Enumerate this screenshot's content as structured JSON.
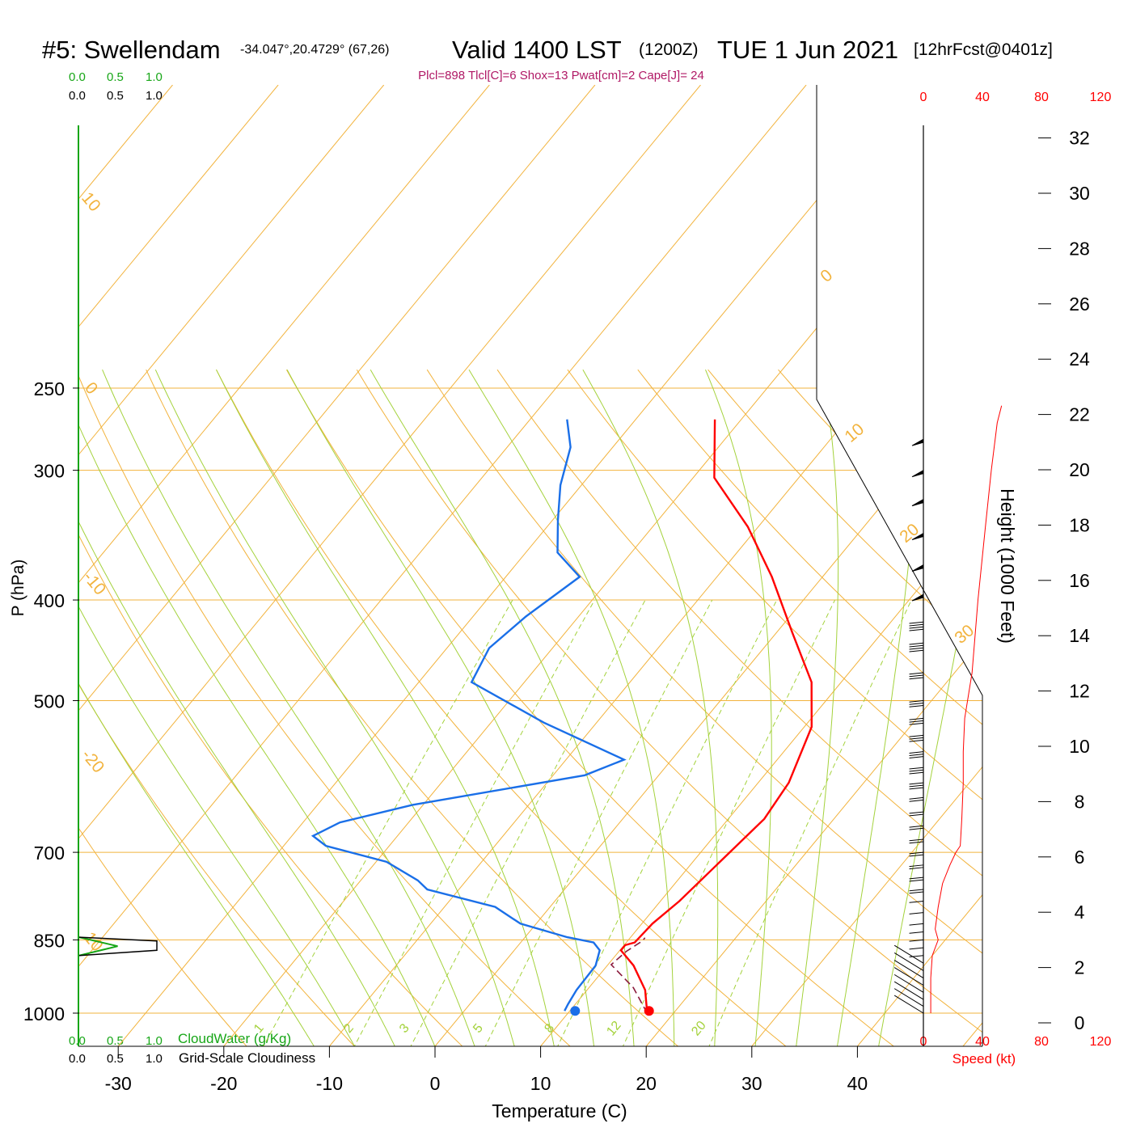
{
  "header": {
    "station": "#5: Swellendam",
    "coords": "-34.047°,20.4729° (67,26)",
    "valid": "Valid 1400 LST",
    "zulu": "(1200Z)",
    "date": "TUE 1 Jun 2021",
    "forecast": "[12hrFcst@0401z]",
    "indices": "Plcl=898 Tlcl[C]=6 Shox=13 Pwat[cm]=2 Cape[J]= 24"
  },
  "top_scales": {
    "cloudwater": [
      "0.0",
      "0.5",
      "1.0"
    ],
    "cloudiness": [
      "0.0",
      "0.5",
      "1.0"
    ]
  },
  "bottom_scales": {
    "cloudwater": [
      "0.0",
      "0.5",
      "1.0"
    ],
    "cloudwater_label": "CloudWater (g/Kg)",
    "cloudiness": [
      "0.0",
      "0.5",
      "1.0"
    ],
    "cloudiness_label": "Grid-Scale Cloudiness"
  },
  "wind_speed_axis": {
    "ticks": [
      "0",
      "40",
      "80",
      "120"
    ],
    "label": "Speed (kt)"
  },
  "chart_data": {
    "type": "line",
    "subtype": "skew-T log-P sounding",
    "xlabel": "Temperature (C)",
    "ylabel": "P (hPa)",
    "y2label": "Height (1000 Feet)",
    "x_ticks": [
      -30,
      -20,
      -10,
      0,
      10,
      20,
      30,
      40
    ],
    "p_ticks": [
      250,
      300,
      400,
      500,
      700,
      850,
      1000
    ],
    "height_ticks": [
      0,
      2,
      4,
      6,
      8,
      10,
      12,
      14,
      16,
      18,
      20,
      22,
      24,
      26,
      28,
      30,
      32
    ],
    "isotherm_labels": [
      "-20",
      "-10",
      "0",
      "10",
      "0",
      "10",
      "20",
      "30",
      "10"
    ],
    "mixing_ratio_labels": [
      "1",
      "2",
      "3",
      "5",
      "8",
      "12",
      "20"
    ],
    "series": [
      {
        "name": "temperature",
        "color": "#ff0000",
        "points": [
          [
            17.5,
            1000
          ],
          [
            15.5,
            950
          ],
          [
            12.5,
            900
          ],
          [
            10.1,
            870
          ],
          [
            10.1,
            860
          ],
          [
            10.8,
            855
          ],
          [
            11.0,
            820
          ],
          [
            11.8,
            780
          ],
          [
            12.5,
            720
          ],
          [
            13.4,
            650
          ],
          [
            12.9,
            600
          ],
          [
            10.7,
            530
          ],
          [
            7.2,
            480
          ],
          [
            1.5,
            430
          ],
          [
            -4.8,
            380
          ],
          [
            -11.0,
            340
          ],
          [
            -18.0,
            305
          ],
          [
            -22.5,
            268
          ]
        ]
      },
      {
        "name": "dewpoint",
        "color": "#1a6fe8",
        "points": [
          [
            9.5,
            995
          ],
          [
            9.3,
            980
          ],
          [
            9.0,
            950
          ],
          [
            8.9,
            900
          ],
          [
            8.1,
            870
          ],
          [
            6.9,
            855
          ],
          [
            4.0,
            845
          ],
          [
            -1.5,
            820
          ],
          [
            -5.2,
            790
          ],
          [
            -13.0,
            760
          ],
          [
            -14.6,
            745
          ],
          [
            -19.0,
            715
          ],
          [
            -26.0,
            690
          ],
          [
            -28.0,
            675
          ],
          [
            -26.5,
            655
          ],
          [
            -21.0,
            630
          ],
          [
            -7.0,
            590
          ],
          [
            -4.5,
            570
          ],
          [
            -15.0,
            525
          ],
          [
            -25.0,
            480
          ],
          [
            -26.0,
            445
          ],
          [
            -25.0,
            415
          ],
          [
            -23.0,
            380
          ],
          [
            -27.0,
            360
          ],
          [
            -29.5,
            335
          ],
          [
            -32.0,
            310
          ],
          [
            -34.0,
            285
          ],
          [
            -36.5,
            268
          ]
        ]
      },
      {
        "name": "parcel",
        "color": "#8b1a3c",
        "points": [
          [
            17.5,
            1000
          ],
          [
            14.2,
            945
          ],
          [
            10.3,
            898
          ],
          [
            10.7,
            872
          ],
          [
            11.4,
            852
          ],
          [
            11.4,
            846
          ]
        ]
      }
    ],
    "surface_temperature": 17.5,
    "surface_dewpoint": 10.5,
    "wind_speed_kt": [
      [
        5,
        1000
      ],
      [
        5,
        975
      ],
      [
        5,
        925
      ],
      [
        6,
        880
      ],
      [
        10,
        850
      ],
      [
        8,
        830
      ],
      [
        10,
        790
      ],
      [
        13,
        750
      ],
      [
        18,
        720
      ],
      [
        22,
        700
      ],
      [
        25,
        690
      ],
      [
        26,
        650
      ],
      [
        27,
        600
      ],
      [
        27,
        560
      ],
      [
        28,
        520
      ],
      [
        33,
        470
      ],
      [
        37,
        400
      ],
      [
        42,
        340
      ],
      [
        46,
        300
      ],
      [
        50,
        270
      ],
      [
        53,
        260
      ]
    ],
    "wind_barbs": [
      {
        "p": 1000,
        "speed": 5
      },
      {
        "p": 985,
        "speed": 5
      },
      {
        "p": 970,
        "speed": 5
      },
      {
        "p": 955,
        "speed": 5
      },
      {
        "p": 940,
        "speed": 5
      },
      {
        "p": 925,
        "speed": 5
      },
      {
        "p": 910,
        "speed": 5
      },
      {
        "p": 895,
        "speed": 6
      },
      {
        "p": 880,
        "speed": 8
      },
      {
        "p": 865,
        "speed": 10
      },
      {
        "p": 850,
        "speed": 10
      },
      {
        "p": 835,
        "speed": 10
      },
      {
        "p": 820,
        "speed": 10
      },
      {
        "p": 800,
        "speed": 12
      },
      {
        "p": 780,
        "speed": 14
      },
      {
        "p": 760,
        "speed": 15
      },
      {
        "p": 740,
        "speed": 15
      },
      {
        "p": 720,
        "speed": 18
      },
      {
        "p": 700,
        "speed": 20
      },
      {
        "p": 680,
        "speed": 20
      },
      {
        "p": 660,
        "speed": 22
      },
      {
        "p": 640,
        "speed": 23
      },
      {
        "p": 620,
        "speed": 24
      },
      {
        "p": 600,
        "speed": 25
      },
      {
        "p": 580,
        "speed": 25
      },
      {
        "p": 560,
        "speed": 26
      },
      {
        "p": 540,
        "speed": 27
      },
      {
        "p": 520,
        "speed": 28
      },
      {
        "p": 500,
        "speed": 30
      },
      {
        "p": 470,
        "speed": 33
      },
      {
        "p": 440,
        "speed": 35
      },
      {
        "p": 420,
        "speed": 37
      },
      {
        "p": 395,
        "speed": 50
      },
      {
        "p": 370,
        "speed": 50
      },
      {
        "p": 345,
        "speed": 50
      },
      {
        "p": 320,
        "speed": 50
      },
      {
        "p": 300,
        "speed": 50
      },
      {
        "p": 280,
        "speed": 50
      }
    ],
    "cloudwater_profile": [
      [
        0,
        845
      ],
      [
        0.25,
        862
      ],
      [
        0,
        880
      ]
    ],
    "cloudiness_profile": [
      [
        0,
        845
      ],
      [
        1.0,
        852
      ],
      [
        1.0,
        870
      ],
      [
        0,
        880
      ]
    ]
  }
}
